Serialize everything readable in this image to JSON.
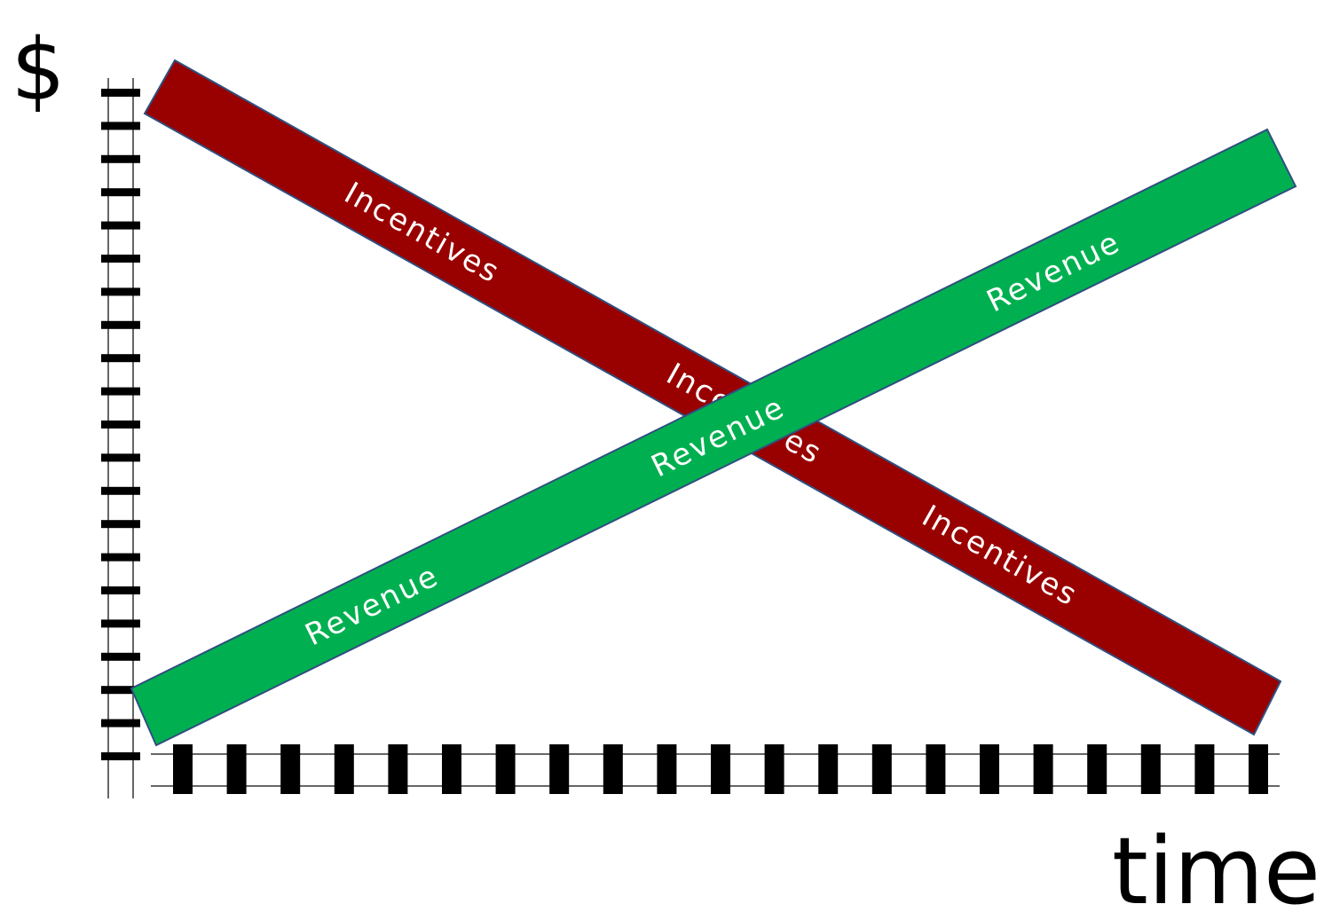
{
  "axes": {
    "y_label": "$",
    "x_label": "time"
  },
  "bands": {
    "incentives": {
      "label": "Incentives",
      "color": "#990000",
      "edge_color": "#2f4f7f"
    },
    "revenue": {
      "label": "Revenue",
      "color": "#00b050",
      "edge_color": "#2f4f7f"
    }
  },
  "track": {
    "rail_color": "#666666",
    "tie_color": "#000000"
  }
}
